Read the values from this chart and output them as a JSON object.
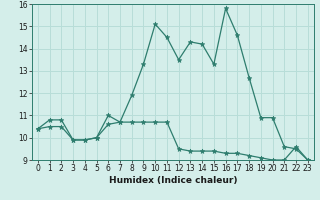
{
  "xlabel": "Humidex (Indice chaleur)",
  "x": [
    0,
    1,
    2,
    3,
    4,
    5,
    6,
    7,
    8,
    9,
    10,
    11,
    12,
    13,
    14,
    15,
    16,
    17,
    18,
    19,
    20,
    21,
    22,
    23
  ],
  "line1": [
    10.4,
    10.8,
    10.8,
    9.9,
    9.9,
    10.0,
    11.0,
    10.7,
    11.9,
    13.3,
    15.1,
    14.5,
    13.5,
    14.3,
    14.2,
    13.3,
    15.8,
    14.6,
    12.7,
    10.9,
    10.9,
    9.6,
    9.5,
    9.0
  ],
  "line2": [
    10.4,
    10.5,
    10.5,
    9.9,
    9.9,
    10.0,
    10.6,
    10.7,
    10.7,
    10.7,
    10.7,
    10.7,
    9.5,
    9.4,
    9.4,
    9.4,
    9.3,
    9.3,
    9.2,
    9.1,
    9.0,
    9.0,
    9.6,
    9.0
  ],
  "line_color": "#2e7d6e",
  "bg_color": "#d4eeea",
  "grid_color": "#b8ddd8",
  "ylim": [
    9,
    16
  ],
  "xlim": [
    -0.5,
    23.5
  ],
  "yticks": [
    9,
    10,
    11,
    12,
    13,
    14,
    15,
    16
  ],
  "xticks": [
    0,
    1,
    2,
    3,
    4,
    5,
    6,
    7,
    8,
    9,
    10,
    11,
    12,
    13,
    14,
    15,
    16,
    17,
    18,
    19,
    20,
    21,
    22,
    23
  ],
  "tick_fontsize": 5.5,
  "xlabel_fontsize": 6.5
}
